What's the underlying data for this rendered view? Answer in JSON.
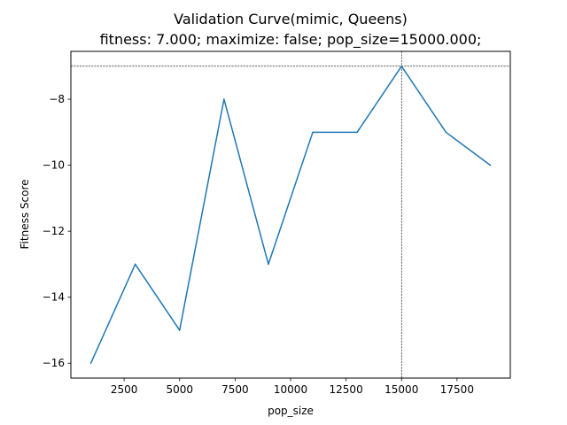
{
  "chart_data": {
    "type": "line",
    "title": "Validation Curve(mimic, Queens)",
    "subtitle": "fitness: 7.000; maximize: false; pop_size=15000.000;",
    "xlabel": "pop_size",
    "ylabel": "Fitness Score",
    "xlim": [
      100,
      19900
    ],
    "ylim": [
      -16.45,
      -6.55
    ],
    "xticks": [
      2500,
      5000,
      7500,
      10000,
      12500,
      15000,
      17500
    ],
    "xtick_labels": [
      "2500",
      "5000",
      "7500",
      "10000",
      "12500",
      "15000",
      "17500"
    ],
    "yticks": [
      -16,
      -14,
      -12,
      -10,
      -8
    ],
    "ytick_labels": [
      "−16",
      "−14",
      "−12",
      "−10",
      "−8"
    ],
    "grid": false,
    "series": [
      {
        "x": [
          1000,
          3000,
          5000,
          7000,
          9000,
          11000,
          13000,
          15000,
          17000,
          19000
        ],
        "values": [
          -16,
          -13,
          -15,
          -8,
          -13,
          -9,
          -9,
          -7,
          -9,
          -10
        ],
        "color": "#1f77b4"
      }
    ],
    "reference_lines": {
      "horizontal_y": -7,
      "vertical_x": 15000,
      "color": "#000000",
      "style": "dashed"
    }
  }
}
